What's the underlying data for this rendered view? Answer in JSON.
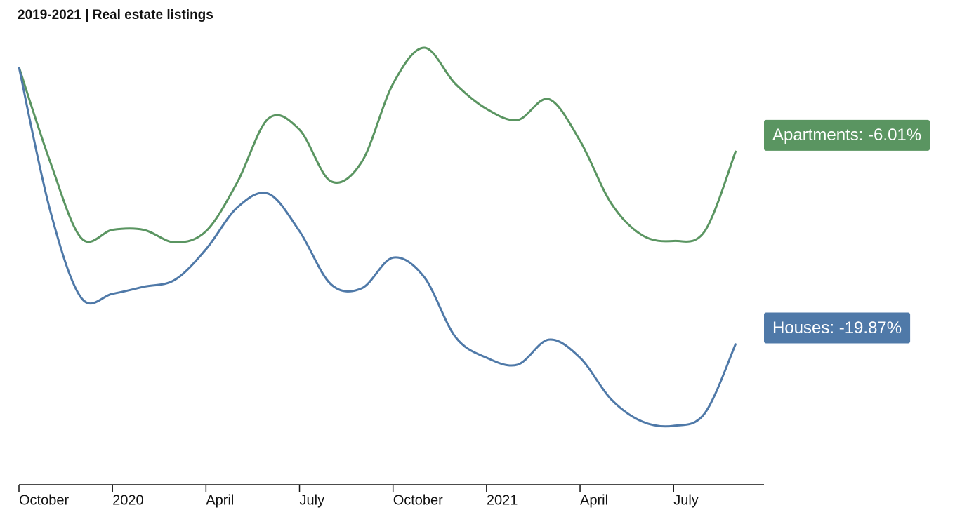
{
  "chart_data": {
    "type": "line",
    "title": "2019-2021 | Real estate listings",
    "x": [
      "2019-10",
      "2019-11",
      "2019-12",
      "2020-01",
      "2020-02",
      "2020-03",
      "2020-04",
      "2020-05",
      "2020-06",
      "2020-07",
      "2020-08",
      "2020-09",
      "2020-10",
      "2020-11",
      "2020-12",
      "2021-01",
      "2021-02",
      "2021-03",
      "2021-04",
      "2021-05",
      "2021-06",
      "2021-07",
      "2021-08",
      "2021-09"
    ],
    "xticks": [
      {
        "value": "2019-10",
        "label": "October"
      },
      {
        "value": "2020-01",
        "label": "2020"
      },
      {
        "value": "2020-04",
        "label": "April"
      },
      {
        "value": "2020-07",
        "label": "July"
      },
      {
        "value": "2020-10",
        "label": "October"
      },
      {
        "value": "2021-01",
        "label": "2021"
      },
      {
        "value": "2021-04",
        "label": "April"
      },
      {
        "value": "2021-07",
        "label": "July"
      }
    ],
    "series": [
      {
        "label": "Apartments: -6.01%",
        "color": "#5a9561",
        "values": [
          0,
          -6.8,
          -12.3,
          -11.7,
          -11.7,
          -12.6,
          -11.8,
          -8.3,
          -3.7,
          -4.5,
          -8.2,
          -6.8,
          -1.2,
          1.4,
          -1.2,
          -3.0,
          -3.8,
          -2.3,
          -5.3,
          -9.8,
          -12.1,
          -12.5,
          -11.8,
          -6.01
        ]
      },
      {
        "label": "Houses: -19.87%",
        "color": "#4f79a8",
        "values": [
          0,
          -10.3,
          -16.6,
          -16.3,
          -15.8,
          -15.3,
          -13.1,
          -10.1,
          -9.1,
          -11.8,
          -15.6,
          -15.9,
          -13.7,
          -15.1,
          -19.4,
          -20.9,
          -21.4,
          -19.6,
          -20.9,
          -23.9,
          -25.5,
          -25.8,
          -24.9,
          -19.87
        ]
      }
    ]
  }
}
